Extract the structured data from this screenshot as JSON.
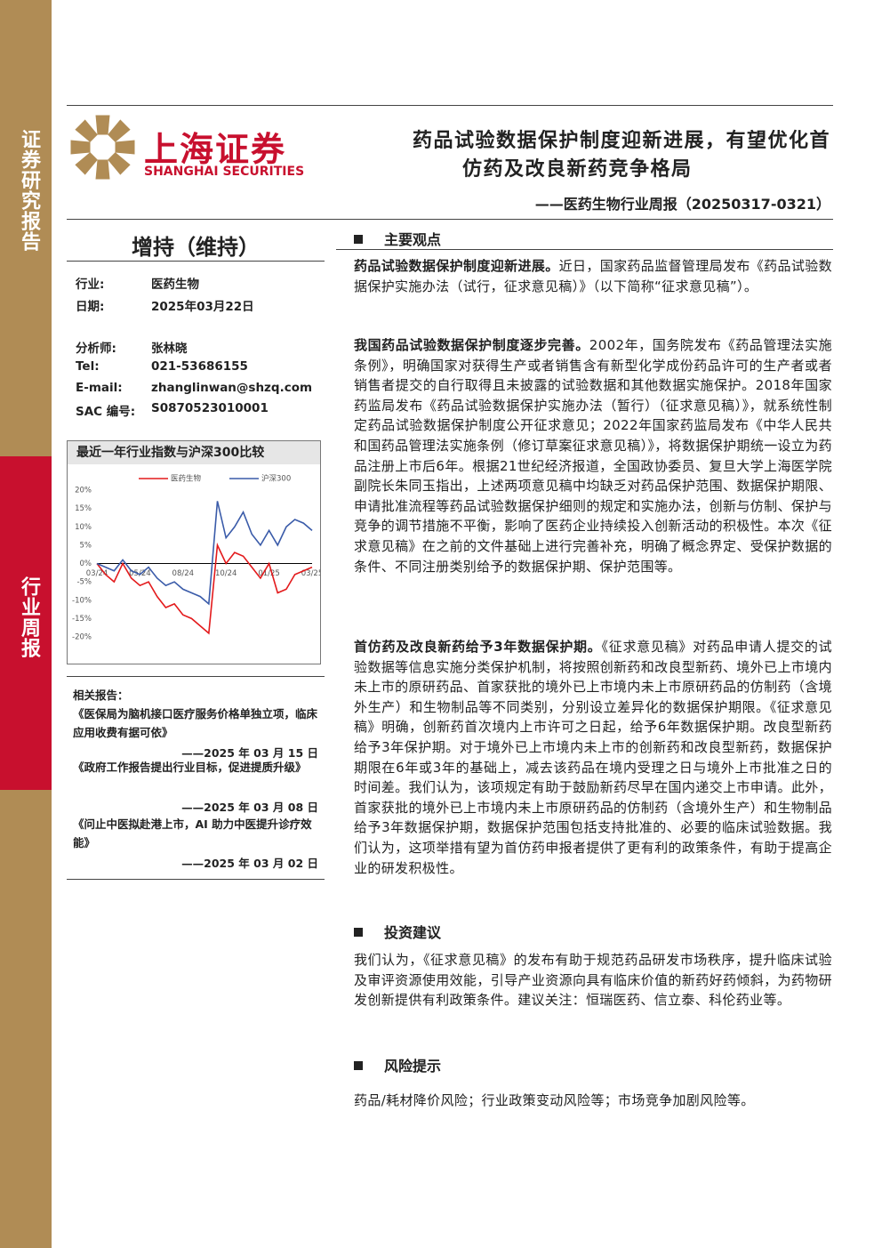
{
  "sidebar": {
    "top": "证券研究报告",
    "bottom": "行业周报"
  },
  "header": {
    "logo_cn": "上海证券",
    "logo_en": "SHANGHAI SECURITIES",
    "title_lines": [
      "药品试验数据保护制度迎新进展，有望优化首",
      "仿药及改良新药竞争格局"
    ],
    "subtitle": "——医药生物行业周报（20250317-0321）"
  },
  "rating": "增持（维持）",
  "info": [
    [
      "行业:",
      "医药生物"
    ],
    [
      "日期:",
      "2025年03月22日"
    ],
    [
      "分析师:",
      "张林晓"
    ],
    [
      "Tel:",
      "021-53686155"
    ],
    [
      "E-mail:",
      "zhanglinwan@shzq.com"
    ],
    [
      "SAC 编号:",
      "S0870523010001"
    ]
  ],
  "chart_data": {
    "type": "line",
    "title": "最近一年行业指数与沪深300比较",
    "categories": [
      "03/24",
      null,
      null,
      null,
      null,
      "05/24",
      null,
      null,
      null,
      null,
      "08/24",
      null,
      null,
      null,
      null,
      "10/24",
      null,
      null,
      null,
      null,
      "01/25",
      null,
      null,
      null,
      null,
      "03/25"
    ],
    "series": [
      {
        "name": "医药生物",
        "color": "#e31a1c",
        "values": [
          0,
          -3,
          -5,
          0,
          -4,
          -6,
          -5,
          -9,
          -12,
          -11,
          -14,
          -15,
          -17,
          -19,
          5,
          0,
          3,
          2,
          -1,
          -4,
          0,
          -8,
          -7,
          -3,
          -2,
          -1
        ]
      },
      {
        "name": "沪深300",
        "color": "#3a5ba9",
        "values": [
          0,
          -1,
          -2,
          1,
          -2,
          -3,
          -1,
          -4,
          -6,
          -5,
          -7,
          -8,
          -9,
          -11,
          17,
          7,
          10,
          14,
          8,
          5,
          9,
          5,
          10,
          12,
          11,
          9
        ]
      }
    ],
    "ylim": [
      -20,
      20
    ],
    "yticks": [
      {
        "value": 20,
        "label": "20%"
      },
      {
        "value": 15,
        "label": "15%"
      },
      {
        "value": 10,
        "label": "10%"
      },
      {
        "value": 5,
        "label": "5%"
      },
      {
        "value": 0,
        "label": "0%"
      },
      {
        "value": -5,
        "label": "-5%"
      },
      {
        "value": -10,
        "label": "-10%"
      },
      {
        "value": -15,
        "label": "-15%"
      },
      {
        "value": -20,
        "label": "-20%"
      }
    ]
  },
  "related": {
    "heading": "相关报告：",
    "items": [
      {
        "title": "《医保局为脑机接口医疗服务价格单独立项，临床应用收费有据可依》",
        "date": "——2025 年 03 月 15 日"
      },
      {
        "title": "《政府工作报告提出行业目标，促进提质升级》",
        "date": "——2025 年 03 月 08 日"
      },
      {
        "title": "《问止中医拟赴港上市，AI 助力中医提升诊疗效能》",
        "date": "——2025 年 03 月 02 日"
      }
    ]
  },
  "sections": [
    {
      "title": "主要观点",
      "paragraphs": [
        {
          "lead": "药品试验数据保护制度迎新进展。",
          "text": "近日，国家药品监督管理局发布《药品试验数据保护实施办法（试行，征求意见稿）》（以下简称“征求意见稿”）。"
        },
        {
          "lead": "我国药品试验数据保护制度逐步完善。",
          "text": "2002年，国务院发布《药品管理法实施条例》，明确国家对获得生产或者销售含有新型化学成份药品许可的生产者或者销售者提交的自行取得且未披露的试验数据和其他数据实施保护。2018年国家药监局发布《药品试验数据保护实施办法（暂行）（征求意见稿）》，就系统性制定药品试验数据保护制度公开征求意见；2022年国家药监局发布《中华人民共和国药品管理法实施条例（修订草案征求意见稿）》，将数据保护期统一设立为药品注册上市后6年。根据21世纪经济报道，全国政协委员、复旦大学上海医学院副院长朱同玉指出，上述两项意见稿中均缺乏对药品保护范围、数据保护期限、申请批准流程等药品试验数据保护细则的规定和实施办法，创新与仿制、保护与竞争的调节措施不平衡，影响了医药企业持续投入创新活动的积极性。本次《征求意见稿》在之前的文件基础上进行完善补充，明确了概念界定、受保护数据的条件、不同注册类别给予的数据保护期、保护范围等。"
        },
        {
          "lead": "首仿药及改良新药给予3年数据保护期。",
          "text": "《征求意见稿》对药品申请人提交的试验数据等信息实施分类保护机制，将按照创新药和改良型新药、境外已上市境内未上市的原研药品、首家获批的境外已上市境内未上市原研药品的仿制药（含境外生产）和生物制品等不同类别，分别设立差异化的数据保护期限。《征求意见稿》明确，创新药首次境内上市许可之日起，给予6年数据保护期。改良型新药给予3年保护期。对于境外已上市境内未上市的创新药和改良型新药，数据保护期限在6年或3年的基础上，减去该药品在境内受理之日与境外上市批准之日的时间差。我们认为，该项规定有助于鼓励新药尽早在国内递交上市申请。此外，首家获批的境外已上市境内未上市原研药品的仿制药（含境外生产）和生物制品给予3年数据保护期，数据保护范围包括支持批准的、必要的临床试验数据。我们认为，这项举措有望为首仿药申报者提供了更有利的政策条件，有助于提高企业的研发积极性。"
        }
      ]
    },
    {
      "title": "投资建议",
      "paragraphs": [
        {
          "text": "我们认为，《征求意见稿》的发布有助于规范药品研发市场秩序，提升临床试验及审评资源使用效能，引导产业资源向具有临床价值的新药好药倾斜，为药物研发创新提供有利政策条件。建议关注：恒瑞医药、信立泰、科伦药业等。"
        }
      ]
    },
    {
      "title": "风险提示",
      "paragraphs": [
        {
          "text": "药品/耗材降价风险；行业政策变动风险等；市场竞争加剧风险等。"
        }
      ]
    }
  ]
}
